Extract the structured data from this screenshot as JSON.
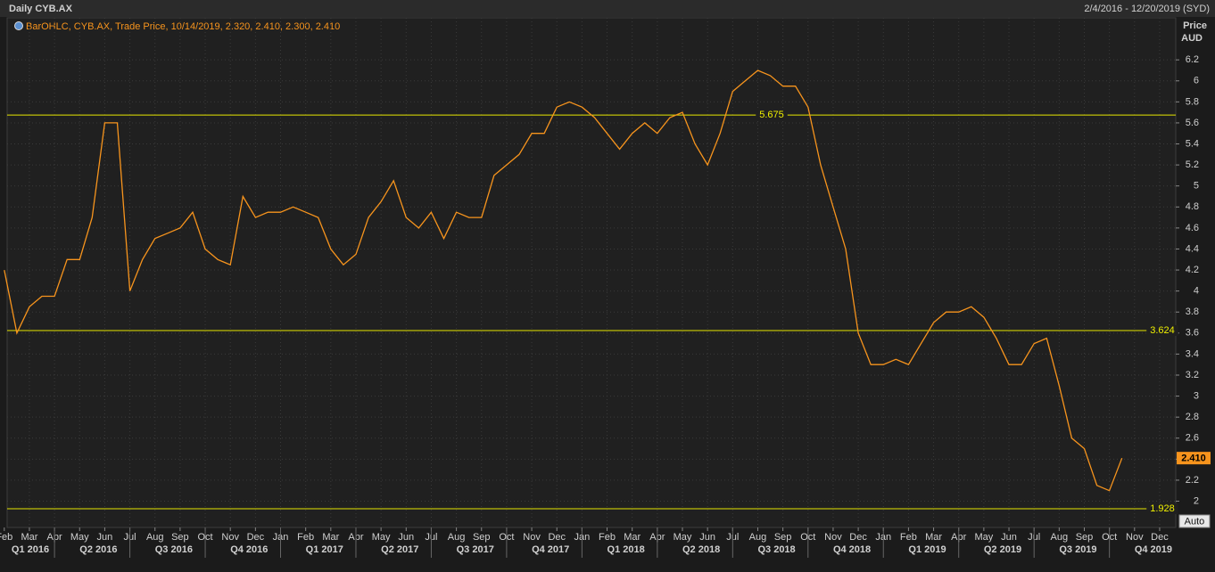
{
  "chart_data": {
    "type": "line",
    "title": "Daily CYB.AX",
    "date_range": "2/4/2016 - 12/20/2019 (SYD)",
    "axis_title": "Price",
    "axis_unit": "AUD",
    "auto_button": "Auto",
    "categories": [
      "Feb",
      null,
      "Mar",
      null,
      "Apr",
      null,
      "May",
      null,
      "Jun",
      null,
      "Jul",
      null,
      "Aug",
      null,
      "Sep",
      null,
      "Oct",
      null,
      "Nov",
      null,
      "Dec",
      null,
      "Jan",
      null,
      "Feb",
      null,
      "Mar",
      null,
      "Apr",
      null,
      "May",
      null,
      "Jun",
      null,
      "Jul",
      null,
      "Aug",
      null,
      "Sep",
      null,
      "Oct",
      null,
      "Nov",
      null,
      "Dec",
      null,
      "Jan",
      null,
      "Feb",
      null,
      "Mar",
      null,
      "Apr",
      null,
      "May",
      null,
      "Jun",
      null,
      "Jul",
      null,
      "Aug",
      null,
      "Sep",
      null,
      "Oct",
      null,
      "Nov",
      null,
      "Dec",
      null,
      "Jan",
      null,
      "Feb",
      null,
      "Mar",
      null,
      "Apr",
      null,
      "May",
      null,
      "Jun",
      null,
      "Jul",
      null,
      "Aug",
      null,
      "Sep",
      null,
      "Oct",
      null,
      "Nov",
      null,
      "Dec",
      null
    ],
    "quarters": [
      "Q1 2016",
      "Q2 2016",
      "Q3 2016",
      "Q4 2016",
      "Q1 2017",
      "Q2 2017",
      "Q3 2017",
      "Q4 2017",
      "Q1 2018",
      "Q2 2018",
      "Q3 2018",
      "Q4 2018",
      "Q1 2019",
      "Q2 2019",
      "Q3 2019",
      "Q4 2019"
    ],
    "series": [
      {
        "name": "BarOHLC, CYB.AX, Trade Price, 10/14/2019, 2.320, 2.410, 2.300, 2.410",
        "color": "#f7941d",
        "values": [
          4.2,
          3.6,
          3.85,
          3.95,
          3.95,
          4.3,
          4.3,
          4.7,
          5.6,
          5.6,
          4.0,
          4.3,
          4.5,
          4.55,
          4.6,
          4.75,
          4.4,
          4.3,
          4.25,
          4.9,
          4.7,
          4.75,
          4.75,
          4.8,
          4.75,
          4.7,
          4.4,
          4.25,
          4.35,
          4.7,
          4.85,
          5.05,
          4.7,
          4.6,
          4.75,
          4.5,
          4.75,
          4.7,
          4.7,
          5.1,
          5.2,
          5.3,
          5.5,
          5.5,
          5.75,
          5.8,
          5.75,
          5.65,
          5.5,
          5.35,
          5.5,
          5.6,
          5.5,
          5.65,
          5.7,
          5.4,
          5.2,
          5.5,
          5.9,
          6.0,
          6.1,
          6.05,
          5.95,
          5.95,
          5.75,
          5.2,
          4.8,
          4.4,
          3.6,
          3.3,
          3.3,
          3.35,
          3.3,
          3.5,
          3.7,
          3.8,
          3.8,
          3.85,
          3.75,
          3.55,
          3.3,
          3.3,
          3.5,
          3.55,
          3.1,
          2.6,
          2.5,
          2.15,
          2.1,
          2.41,
          null,
          null,
          null,
          null
        ]
      }
    ],
    "last_price": {
      "value": 2.41,
      "label": "2.410"
    },
    "hlines": [
      5.675,
      3.624,
      1.928
    ],
    "ylim": [
      1.75,
      6.6
    ],
    "yticks": [
      2,
      2.2,
      2.4,
      2.6,
      2.8,
      3,
      3.2,
      3.4,
      3.6,
      3.8,
      4,
      4.2,
      4.4,
      4.6,
      4.8,
      5,
      5.2,
      5.4,
      5.6,
      5.8,
      6,
      6.2
    ],
    "grid": true
  }
}
